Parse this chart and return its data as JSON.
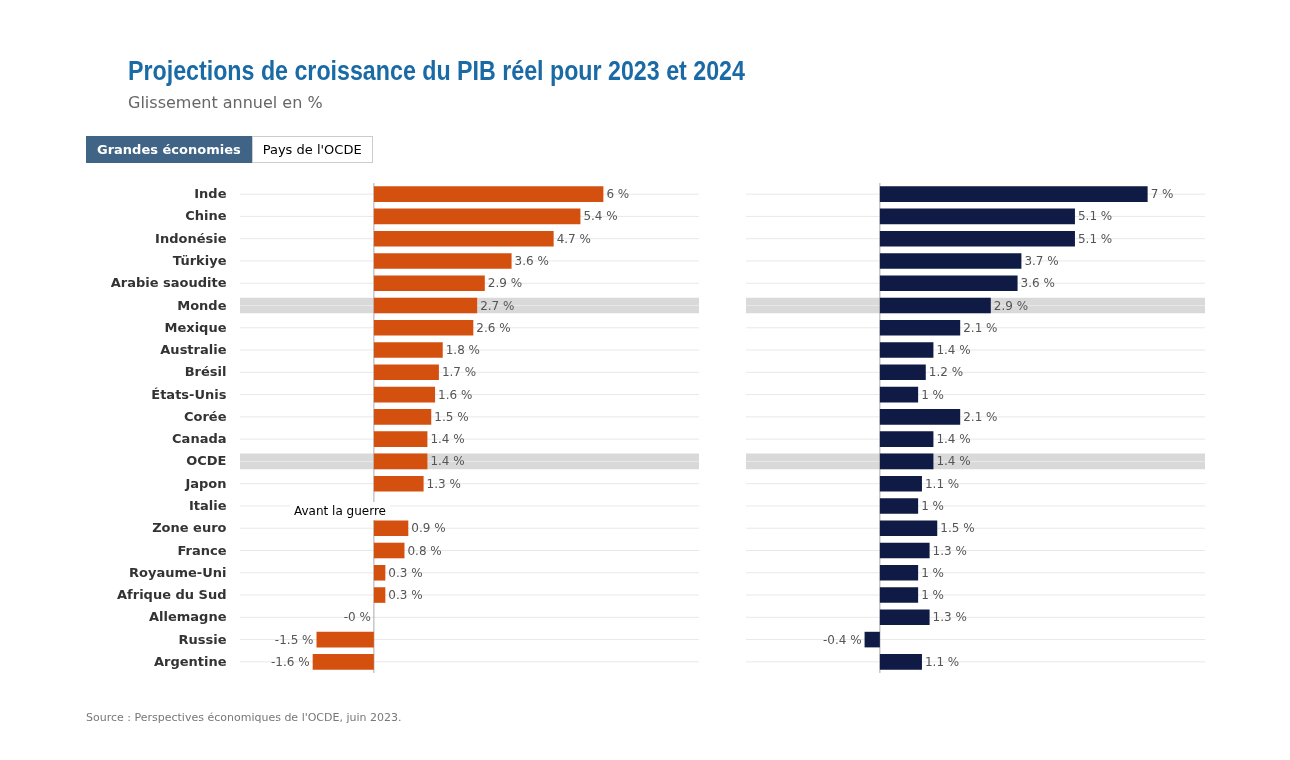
{
  "chart_data": [
    {
      "type": "bar",
      "orientation": "horizontal",
      "title": "Projections de croissance du PIB réel pour 2023 et 2024",
      "subtitle": "Glissement annuel en %",
      "annotations": [
        "Grandes économies",
        "Pays de l'OCDE",
        "Source : Perspectives économiques de l'OCDE, juin 2023.",
        "Avant la guerre"
      ],
      "categories": [
        "Inde",
        "Chine",
        "Indonésie",
        "Türkiye",
        "Arabie saoudite",
        "Monde",
        "Mexique",
        "Australie",
        "Brésil",
        "États-Unis",
        "Corée",
        "Canada",
        "OCDE",
        "Japon",
        "Italie",
        "Zone euro",
        "France",
        "Royaume-Uni",
        "Afrique du Sud",
        "Allemagne",
        "Russie",
        "Argentine"
      ],
      "series": [
        {
          "color": "#d4500f",
          "values": [
            6,
            5.4,
            4.7,
            3.6,
            2.9,
            2.7,
            2.6,
            1.8,
            1.7,
            1.6,
            1.5,
            1.4,
            1.4,
            1.3,
            null,
            0.9,
            0.8,
            0.3,
            0.3,
            0,
            -1.5,
            -1.6
          ],
          "value_labels": [
            "6 %",
            "5.4 %",
            "4.7 %",
            "3.6 %",
            "2.9 %",
            "2.7 %",
            "2.6 %",
            "1.8 %",
            "1.7 %",
            "1.6 %",
            "1.5 %",
            "1.4 %",
            "1.4 %",
            "1.3 %",
            null,
            "0.9 %",
            "0.8 %",
            "0.3 %",
            "0.3 %",
            "-0 %",
            "-1.5 %",
            "-1.6 %"
          ]
        }
      ],
      "bands": [
        {
          "axis": "y",
          "from": "Monde",
          "to": "Monde",
          "color": "#d9d9d9"
        },
        {
          "axis": "y",
          "from": "OCDE",
          "to": "OCDE",
          "color": "#d9d9d9"
        }
      ],
      "xlim": [
        -3.5,
        8.5
      ],
      "grid": "y",
      "tick_labels": "y"
    },
    {
      "type": "bar",
      "orientation": "horizontal",
      "categories": [
        "Inde",
        "Chine",
        "Indonésie",
        "Türkiye",
        "Arabie saoudite",
        "Monde",
        "Mexique",
        "Australie",
        "Brésil",
        "États-Unis",
        "Corée",
        "Canada",
        "OCDE",
        "Japon",
        "Italie",
        "Zone euro",
        "France",
        "Royaume-Uni",
        "Afrique du Sud",
        "Allemagne",
        "Russie",
        "Argentine"
      ],
      "series": [
        {
          "color": "#0f1a45",
          "values": [
            7,
            5.1,
            5.1,
            3.7,
            3.6,
            2.9,
            2.1,
            1.4,
            1.2,
            1,
            2.1,
            1.4,
            1.4,
            1.1,
            1,
            1.5,
            1.3,
            1,
            1,
            1.3,
            -0.4,
            1.1
          ],
          "value_labels": [
            "7 %",
            "5.1 %",
            "5.1 %",
            "3.7 %",
            "3.6 %",
            "2.9 %",
            "2.1 %",
            "1.4 %",
            "1.2 %",
            "1 %",
            "2.1 %",
            "1.4 %",
            "1.4 %",
            "1.1 %",
            "1 %",
            "1.5 %",
            "1.3 %",
            "1 %",
            "1 %",
            "1.3 %",
            "-0.4 %",
            "1.1 %"
          ]
        }
      ],
      "bands": [
        {
          "axis": "y",
          "from": "Monde",
          "to": "Monde",
          "color": "#d9d9d9"
        },
        {
          "axis": "y",
          "from": "OCDE",
          "to": "OCDE",
          "color": "#d9d9d9"
        }
      ],
      "xlim": [
        -3.5,
        8.5
      ],
      "grid": "y",
      "tick_labels": false
    }
  ]
}
